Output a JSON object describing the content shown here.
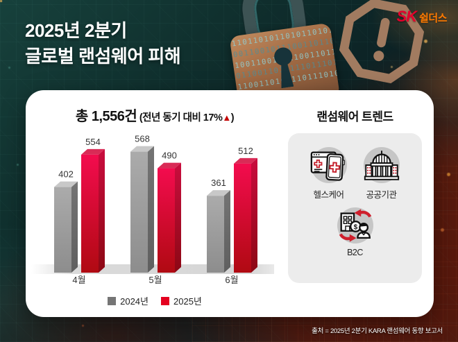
{
  "header": {
    "title_line1": "2025년 2분기",
    "title_line2": "글로벌 랜섬웨어 피해",
    "logo": {
      "sk": "SK",
      "brand": "쉴더스",
      "sk_color": "#e4002b",
      "brand_color": "#ff7a00"
    }
  },
  "chart": {
    "title_main": "총 1,556건",
    "title_sub": " (전년 동기 대비 17%",
    "title_arrow": "▲",
    "title_close": ")"
  },
  "chart_data": {
    "type": "bar",
    "style": "3d-column",
    "title": "총 1,556건 (전년 동기 대비 17%▲)",
    "total": 1556,
    "yoy_change_pct": 17,
    "categories": [
      "4월",
      "5월",
      "6월"
    ],
    "series": [
      {
        "name": "2024년",
        "color": "#757575",
        "values": [
          402,
          568,
          361
        ]
      },
      {
        "name": "2025년",
        "color": "#e4001f",
        "values": [
          554,
          490,
          512
        ]
      }
    ],
    "ylim": [
      0,
      600
    ],
    "grid": false,
    "legend_position": "bottom",
    "value_labels": true
  },
  "trends": {
    "title": "랜섬웨어 트렌드",
    "coin_symbol": "$",
    "items": [
      {
        "label": "헬스케어",
        "icon": "healthcare-icon"
      },
      {
        "label": "공공기관",
        "icon": "government-building-icon"
      },
      {
        "label": "B2C",
        "icon": "b2c-commerce-icon"
      }
    ]
  },
  "footer": {
    "source": "출처 = 2025년 2분기 KARA 랜섬웨어 동향 보고서"
  },
  "background": {
    "lock_binary_rows": [
      "110110101101011010110",
      "001100101110011011010",
      "100110010111001101101",
      "011001101011101110101",
      "110011010011011101001"
    ]
  },
  "colors": {
    "accent_red": "#e4001f",
    "bar_gray": "#9a9a9a",
    "bar_red_top": "#f30c4e",
    "bar_red_bottom": "#b00a12",
    "panel_gray": "#ececec",
    "octagon_tan": "#a87f63",
    "lock_copper": "#a06a44"
  }
}
